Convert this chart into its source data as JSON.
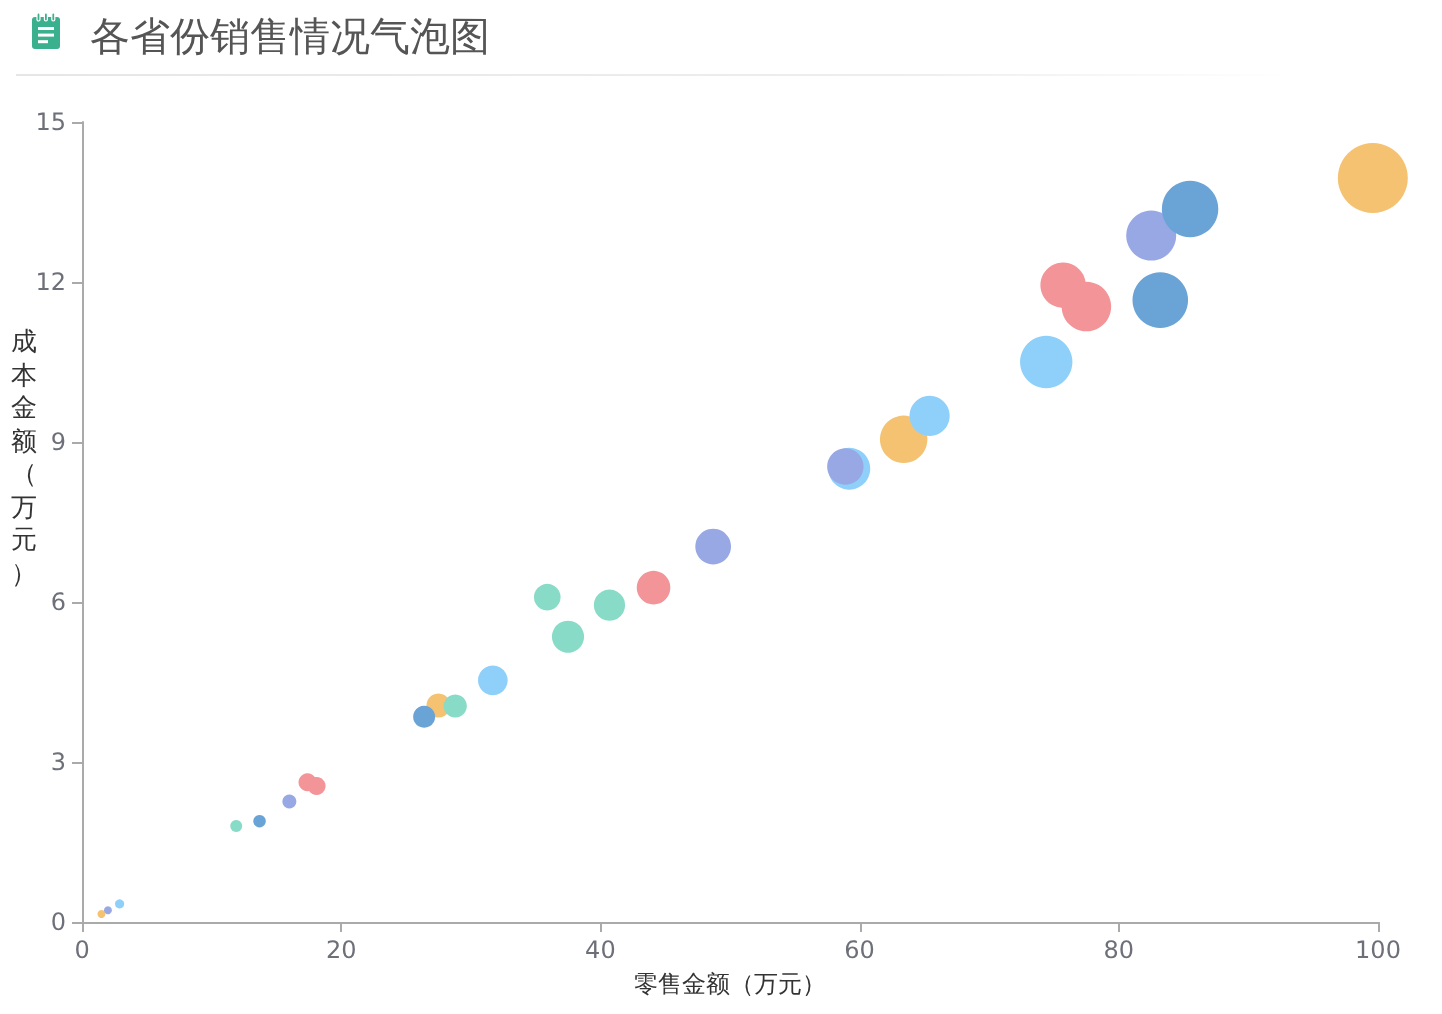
{
  "chart_data": {
    "type": "bubble",
    "title": "各省份销售情况气泡图",
    "xlabel": "零售金额（万元）",
    "ylabel": "成本金额（万元）",
    "x": [
      1.5,
      2.0,
      2.9,
      11.9,
      13.7,
      16.0,
      17.4,
      18.1,
      27.5,
      28.8,
      26.4,
      31.7,
      35.9,
      37.5,
      40.7,
      44.1,
      48.7,
      59.2,
      58.9,
      63.4,
      65.4,
      74.4,
      75.7,
      77.5,
      83.2,
      82.5,
      85.5,
      99.6
    ],
    "values": [
      0.15,
      0.22,
      0.34,
      1.8,
      1.89,
      2.26,
      2.62,
      2.55,
      4.06,
      4.05,
      3.85,
      4.53,
      6.09,
      5.35,
      5.94,
      6.27,
      7.04,
      8.5,
      8.54,
      9.05,
      9.49,
      10.5,
      11.94,
      11.54,
      11.66,
      12.87,
      13.37,
      13.95
    ],
    "sizes": [
      0.013,
      0.013,
      0.017,
      0.029,
      0.032,
      0.04,
      0.066,
      0.066,
      0.118,
      0.11,
      0.099,
      0.18,
      0.145,
      0.21,
      0.2,
      0.23,
      0.26,
      0.36,
      0.27,
      0.46,
      0.33,
      0.56,
      0.42,
      0.5,
      0.63,
      0.51,
      0.65,
      1
    ],
    "colors": [
      "#f5c272",
      "#97a8e4",
      "#8fd0fa",
      "#88dbc6",
      "#6aa3d6",
      "#97a8e4",
      "#f29498",
      "#f29498",
      "#f5c272",
      "#88dbc6",
      "#6aa3d6",
      "#8fd0fa",
      "#88dbc6",
      "#88dbc6",
      "#88dbc6",
      "#f29498",
      "#97a8e4",
      "#8fd0fa",
      "#97a8e4",
      "#f5c272",
      "#8fd0fa",
      "#8fd0fa",
      "#f29498",
      "#f29498",
      "#6aa3d6",
      "#97a8e4",
      "#6aa3d6",
      "#f5c272"
    ],
    "marker": "circle",
    "xlim": [
      0,
      100
    ],
    "xticks": [
      0,
      20,
      40,
      60,
      80,
      100
    ],
    "ylim": [
      0,
      15
    ],
    "yticks": [
      0,
      3,
      6,
      9,
      12,
      15
    ]
  }
}
